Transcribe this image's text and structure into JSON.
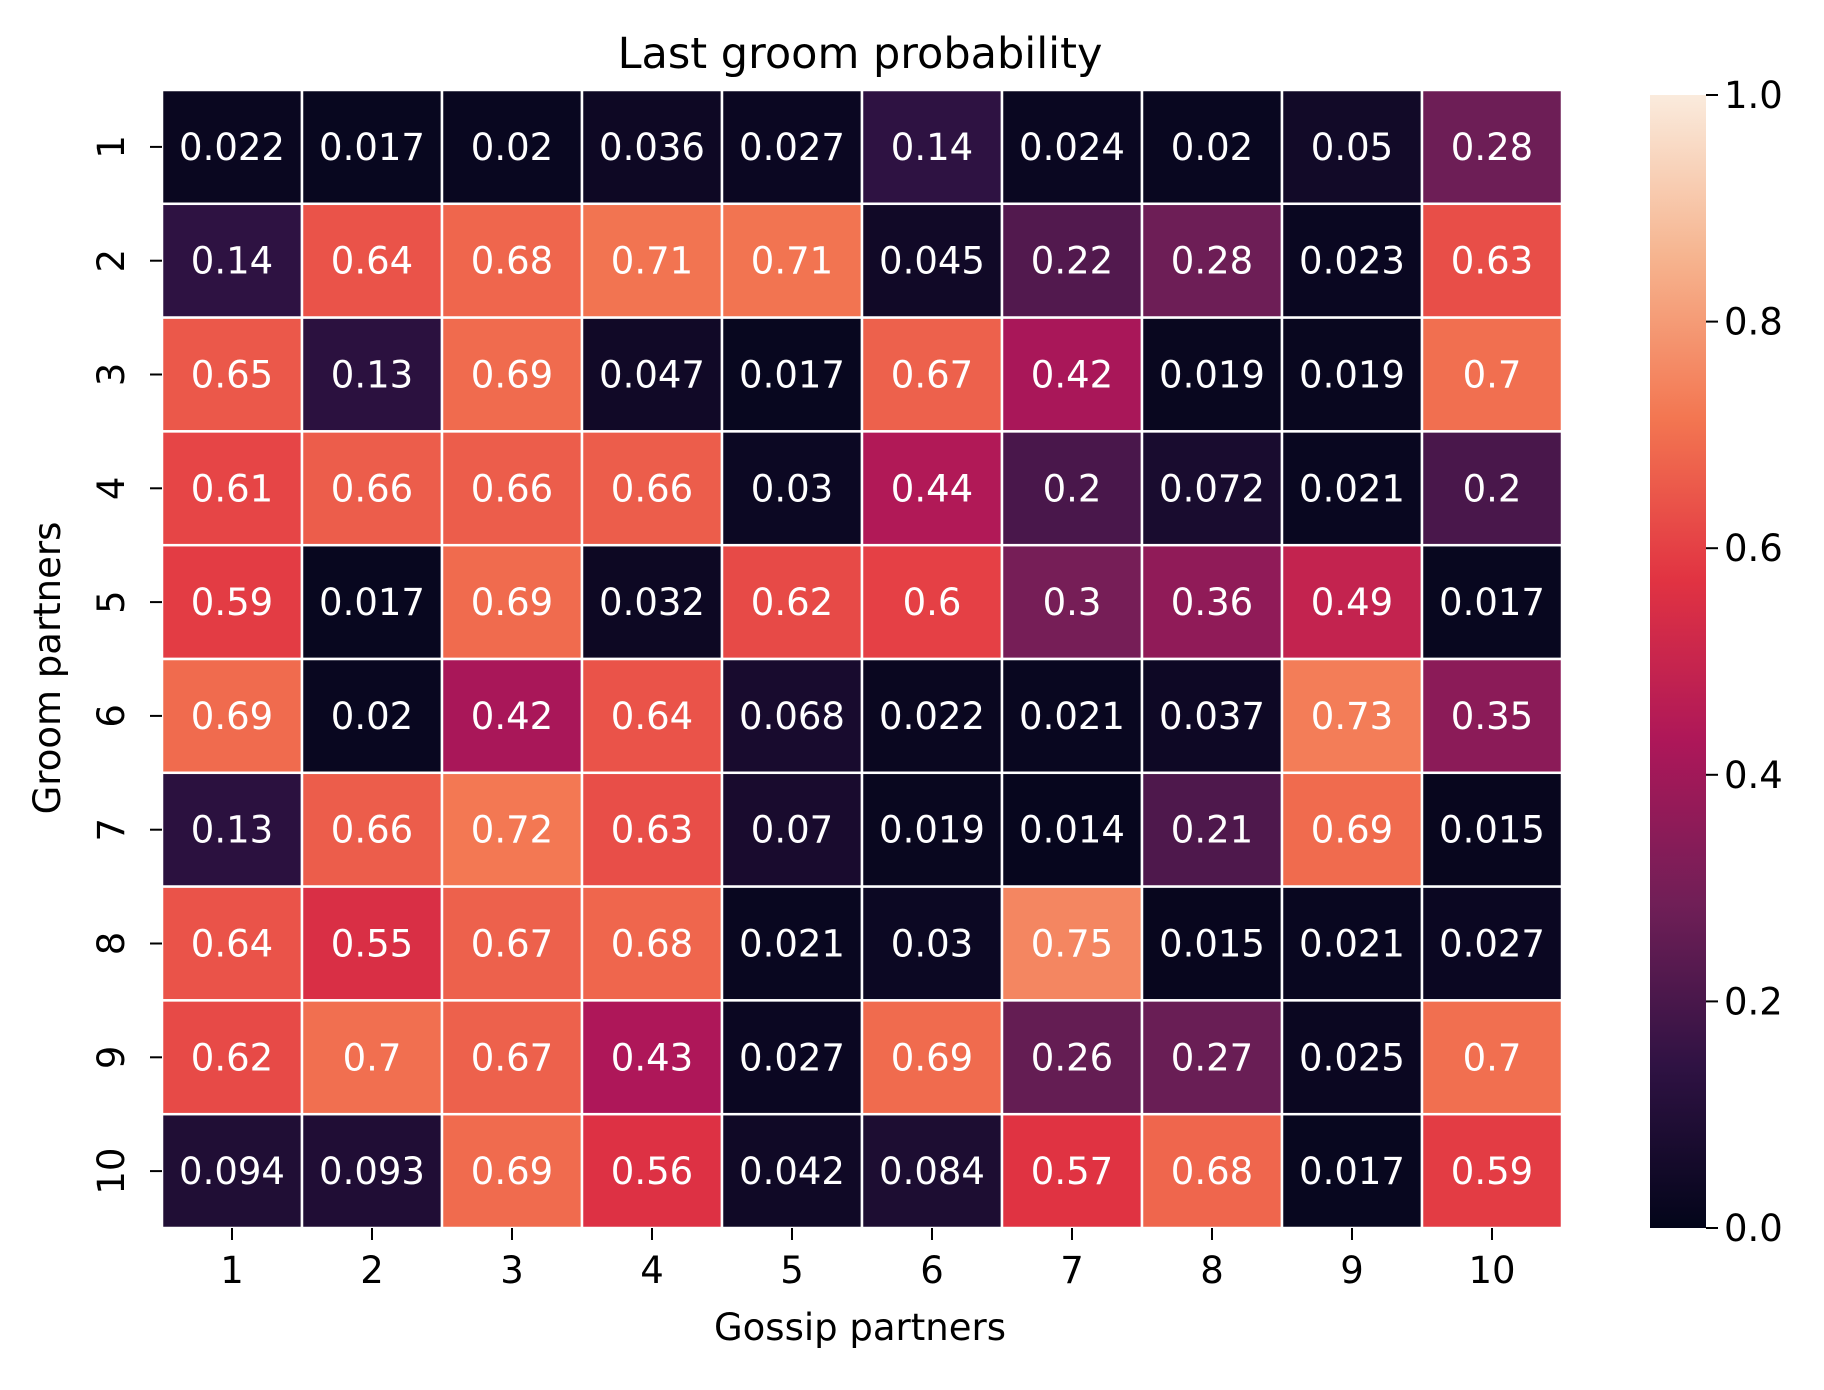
{
  "chart_data": {
    "type": "heatmap",
    "title": "Last groom probability",
    "xlabel": "Gossip partners",
    "ylabel": "Groom partners",
    "x_categories": [
      "1",
      "2",
      "3",
      "4",
      "5",
      "6",
      "7",
      "8",
      "9",
      "10"
    ],
    "y_categories": [
      "1",
      "2",
      "3",
      "4",
      "5",
      "6",
      "7",
      "8",
      "9",
      "10"
    ],
    "values": [
      [
        0.022,
        0.017,
        0.02,
        0.036,
        0.027,
        0.14,
        0.024,
        0.02,
        0.05,
        0.28
      ],
      [
        0.14,
        0.64,
        0.68,
        0.71,
        0.71,
        0.045,
        0.22,
        0.28,
        0.023,
        0.63
      ],
      [
        0.65,
        0.13,
        0.69,
        0.047,
        0.017,
        0.67,
        0.42,
        0.019,
        0.019,
        0.7
      ],
      [
        0.61,
        0.66,
        0.66,
        0.66,
        0.03,
        0.44,
        0.2,
        0.072,
        0.021,
        0.2
      ],
      [
        0.59,
        0.017,
        0.69,
        0.032,
        0.62,
        0.6,
        0.3,
        0.36,
        0.49,
        0.017
      ],
      [
        0.69,
        0.02,
        0.42,
        0.64,
        0.068,
        0.022,
        0.021,
        0.037,
        0.73,
        0.35
      ],
      [
        0.13,
        0.66,
        0.72,
        0.63,
        0.07,
        0.019,
        0.014,
        0.21,
        0.69,
        0.015
      ],
      [
        0.64,
        0.55,
        0.67,
        0.68,
        0.021,
        0.03,
        0.75,
        0.015,
        0.021,
        0.027
      ],
      [
        0.62,
        0.7,
        0.67,
        0.43,
        0.027,
        0.69,
        0.26,
        0.27,
        0.025,
        0.7
      ],
      [
        0.094,
        0.093,
        0.69,
        0.56,
        0.042,
        0.084,
        0.57,
        0.68,
        0.017,
        0.59
      ]
    ],
    "value_labels": [
      [
        "0.022",
        "0.017",
        "0.02",
        "0.036",
        "0.027",
        "0.14",
        "0.024",
        "0.02",
        "0.05",
        "0.28"
      ],
      [
        "0.14",
        "0.64",
        "0.68",
        "0.71",
        "0.71",
        "0.045",
        "0.22",
        "0.28",
        "0.023",
        "0.63"
      ],
      [
        "0.65",
        "0.13",
        "0.69",
        "0.047",
        "0.017",
        "0.67",
        "0.42",
        "0.019",
        "0.019",
        "0.7"
      ],
      [
        "0.61",
        "0.66",
        "0.66",
        "0.66",
        "0.03",
        "0.44",
        "0.2",
        "0.072",
        "0.021",
        "0.2"
      ],
      [
        "0.59",
        "0.017",
        "0.69",
        "0.032",
        "0.62",
        "0.6",
        "0.3",
        "0.36",
        "0.49",
        "0.017"
      ],
      [
        "0.69",
        "0.02",
        "0.42",
        "0.64",
        "0.068",
        "0.022",
        "0.021",
        "0.037",
        "0.73",
        "0.35"
      ],
      [
        "0.13",
        "0.66",
        "0.72",
        "0.63",
        "0.07",
        "0.019",
        "0.014",
        "0.21",
        "0.69",
        "0.015"
      ],
      [
        "0.64",
        "0.55",
        "0.67",
        "0.68",
        "0.021",
        "0.03",
        "0.75",
        "0.015",
        "0.021",
        "0.027"
      ],
      [
        "0.62",
        "0.7",
        "0.67",
        "0.43",
        "0.027",
        "0.69",
        "0.26",
        "0.27",
        "0.025",
        "0.7"
      ],
      [
        "0.094",
        "0.093",
        "0.69",
        "0.56",
        "0.042",
        "0.084",
        "0.57",
        "0.68",
        "0.017",
        "0.59"
      ]
    ],
    "colorbar": {
      "range": [
        0.0,
        1.0
      ],
      "ticks": [
        "0.0",
        "0.2",
        "0.4",
        "0.6",
        "0.8",
        "1.0"
      ],
      "colormap": "rocket",
      "colormap_stops": [
        "#03051a",
        "#2f1243",
        "#701f57",
        "#ad1759",
        "#e13342",
        "#f37651",
        "#f6b48f",
        "#faebdd"
      ]
    },
    "cell_text_color": "#ffffff",
    "grid_line_color": "#ffffff"
  }
}
